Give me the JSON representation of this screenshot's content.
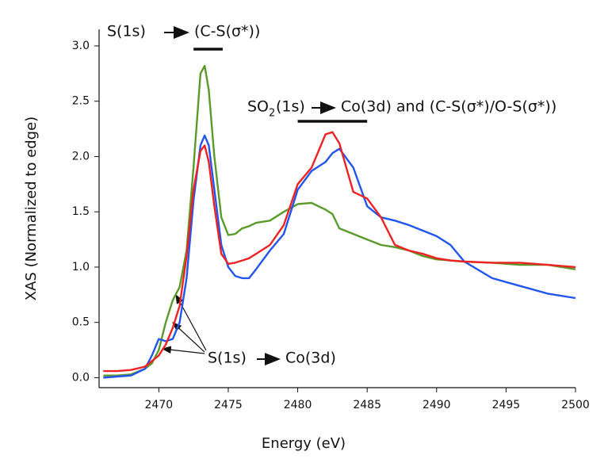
{
  "chart_data": {
    "type": "line",
    "xlabel": "Energy (eV)",
    "ylabel": "XAS (Normalized to edge)",
    "xlim": [
      2465.7,
      2500
    ],
    "xticks": [
      2470,
      2475,
      2480,
      2485,
      2490,
      2495,
      2500
    ],
    "ylim": [
      -0.09,
      3.15
    ],
    "yticks": [
      {
        "value": 0,
        "label": "0.0"
      },
      0.5,
      {
        "value": 1,
        "label": "1.0"
      },
      1.5,
      {
        "value": 2,
        "label": "2.0"
      },
      2.5,
      {
        "value": 3,
        "label": "3.0"
      }
    ],
    "x": [
      2466,
      2467,
      2468,
      2469,
      2469.5,
      2470,
      2470.5,
      2471,
      2471.5,
      2472,
      2472.5,
      2473,
      2473.3,
      2473.6,
      2474,
      2474.5,
      2475,
      2475.5,
      2476,
      2476.5,
      2477,
      2478,
      2479,
      2480,
      2481,
      2482,
      2482.5,
      2483,
      2484,
      2485,
      2486,
      2487,
      2488,
      2489,
      2490,
      2491,
      2492,
      2494,
      2496,
      2498,
      2500
    ],
    "series": [
      {
        "color": "#5a9a2a",
        "values": [
          0.02,
          0.02,
          0.03,
          0.08,
          0.13,
          0.25,
          0.5,
          0.7,
          0.82,
          1.15,
          1.9,
          2.75,
          2.82,
          2.6,
          2.0,
          1.45,
          1.29,
          1.3,
          1.35,
          1.37,
          1.4,
          1.42,
          1.5,
          1.57,
          1.58,
          1.52,
          1.48,
          1.35,
          1.3,
          1.25,
          1.2,
          1.18,
          1.15,
          1.1,
          1.07,
          1.06,
          1.05,
          1.04,
          1.02,
          1.02,
          0.98
        ]
      },
      {
        "color": "#2255ee",
        "values": [
          0.0,
          0.01,
          0.02,
          0.08,
          0.2,
          0.35,
          0.33,
          0.35,
          0.5,
          0.9,
          1.6,
          2.1,
          2.19,
          2.1,
          1.7,
          1.2,
          1.0,
          0.92,
          0.9,
          0.9,
          0.98,
          1.15,
          1.3,
          1.7,
          1.87,
          1.95,
          2.03,
          2.07,
          1.9,
          1.55,
          1.45,
          1.42,
          1.38,
          1.33,
          1.28,
          1.2,
          1.05,
          0.9,
          0.83,
          0.76,
          0.72
        ]
      },
      {
        "color": "#ee2222",
        "values": [
          0.06,
          0.06,
          0.07,
          0.1,
          0.15,
          0.2,
          0.3,
          0.45,
          0.65,
          1.1,
          1.7,
          2.05,
          2.1,
          1.95,
          1.55,
          1.12,
          1.03,
          1.04,
          1.06,
          1.08,
          1.12,
          1.2,
          1.38,
          1.75,
          1.9,
          2.2,
          2.22,
          2.12,
          1.68,
          1.62,
          1.45,
          1.2,
          1.15,
          1.12,
          1.08,
          1.06,
          1.05,
          1.04,
          1.04,
          1.02,
          1.0
        ]
      }
    ],
    "annotations": [
      {
        "parts": [
          "S(1s)",
          "(C-S(σ*))"
        ],
        "xrange": [
          2472.5,
          2474.6
        ]
      },
      {
        "parts": [
          "SO",
          "2",
          "(1s)",
          "Co(3d) and (C-S(σ*)/O-S(σ*))"
        ],
        "xrange": [
          2480,
          2485
        ]
      },
      {
        "parts": [
          "S(1s)",
          "Co(3d)"
        ]
      }
    ]
  }
}
